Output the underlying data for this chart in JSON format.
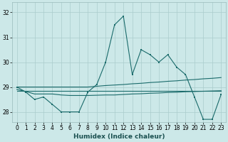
{
  "xlabel": "Humidex (Indice chaleur)",
  "ylabel": "",
  "background_color": "#cce8e8",
  "line_color": "#1a6b6b",
  "grid_color": "#aacccc",
  "xlim": [
    -0.5,
    23.5
  ],
  "ylim": [
    27.6,
    32.4
  ],
  "yticks": [
    28,
    29,
    30,
    31,
    32
  ],
  "xticks": [
    0,
    1,
    2,
    3,
    4,
    5,
    6,
    7,
    8,
    9,
    10,
    11,
    12,
    13,
    14,
    15,
    16,
    17,
    18,
    19,
    20,
    21,
    22,
    23
  ],
  "series_main": [
    29.0,
    28.8,
    28.5,
    28.6,
    28.3,
    28.0,
    28.0,
    28.0,
    28.8,
    29.1,
    30.0,
    31.5,
    31.85,
    29.5,
    30.5,
    30.3,
    30.0,
    30.3,
    29.8,
    29.5,
    28.6,
    27.7,
    27.7,
    28.7
  ],
  "series_line2": [
    28.9,
    28.82,
    28.72,
    28.72,
    28.72,
    28.68,
    28.66,
    28.66,
    28.66,
    28.67,
    28.68,
    28.68,
    28.7,
    28.72,
    28.73,
    28.75,
    28.76,
    28.78,
    28.79,
    28.81,
    28.82,
    28.83,
    28.84,
    28.85
  ],
  "series_line3": [
    28.85,
    28.85,
    28.85,
    28.85,
    28.85,
    28.85,
    28.85,
    28.85,
    28.85,
    28.85,
    28.85,
    28.85,
    28.85,
    28.85,
    28.85,
    28.85,
    28.85,
    28.85,
    28.85,
    28.85,
    28.85,
    28.85,
    28.85,
    28.85
  ],
  "series_line4": [
    29.0,
    29.0,
    29.0,
    29.0,
    29.0,
    29.0,
    29.0,
    29.0,
    29.0,
    29.03,
    29.06,
    29.08,
    29.1,
    29.13,
    29.15,
    29.18,
    29.2,
    29.23,
    29.25,
    29.28,
    29.3,
    29.33,
    29.35,
    29.38
  ]
}
